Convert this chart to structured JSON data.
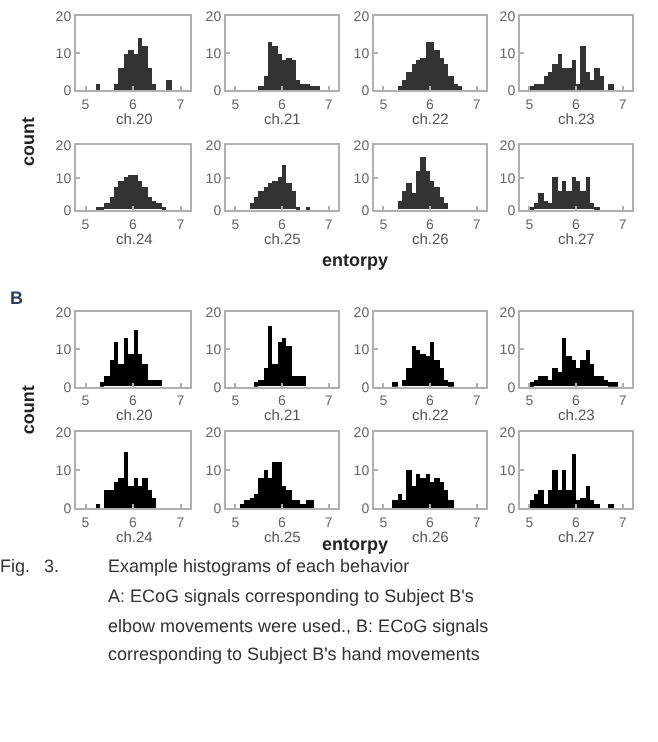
{
  "chart_data": [
    {
      "type": "histogram",
      "xlabel": "ch.20",
      "ylabel": "count",
      "color": "#333333",
      "xlim": [
        4.8,
        7.2
      ],
      "xticks": [
        5,
        6,
        7
      ],
      "ylim": [
        0,
        20
      ],
      "yticks": [
        0,
        10,
        20
      ],
      "grid": false,
      "bins": [
        5.2,
        5.3,
        5.6,
        5.7,
        5.8,
        5.9,
        6.0,
        6.1,
        6.2,
        6.3,
        6.4,
        6.5,
        6.7,
        6.8
      ],
      "values": [
        2,
        0,
        2,
        6,
        10,
        11,
        10,
        14,
        12,
        6,
        2,
        0,
        3
      ]
    },
    {
      "type": "histogram",
      "xlabel": "ch.21",
      "color": "#333333",
      "xlim": [
        4.8,
        7.2
      ],
      "xticks": [
        5,
        6,
        7
      ],
      "ylim": [
        0,
        20
      ],
      "yticks": [
        0,
        10,
        20
      ],
      "grid": false,
      "bins": [
        5.5,
        5.6,
        5.7,
        5.8,
        5.9,
        6.0,
        6.1,
        6.2,
        6.3,
        6.4,
        6.5,
        6.6,
        6.7,
        6.8
      ],
      "values": [
        1,
        4,
        13,
        12,
        10,
        8,
        9,
        8,
        3,
        2,
        2,
        1,
        1
      ]
    },
    {
      "type": "histogram",
      "xlabel": "ch.22",
      "color": "#333333",
      "xlim": [
        4.8,
        7.2
      ],
      "xticks": [
        5,
        6,
        7
      ],
      "ylim": [
        0,
        20
      ],
      "yticks": [
        0,
        10,
        20
      ],
      "grid": false,
      "bins": [
        5.3,
        5.4,
        5.5,
        5.6,
        5.7,
        5.8,
        5.9,
        6.0,
        6.1,
        6.2,
        6.3,
        6.4,
        6.5,
        6.6,
        6.7
      ],
      "values": [
        1,
        3,
        5,
        7,
        8,
        9,
        13,
        13,
        11,
        9,
        7,
        4,
        2,
        1
      ]
    },
    {
      "type": "histogram",
      "xlabel": "ch.23",
      "color": "#333333",
      "xlim": [
        4.8,
        7.2
      ],
      "xticks": [
        5,
        6,
        7
      ],
      "ylim": [
        0,
        20
      ],
      "yticks": [
        0,
        10,
        20
      ],
      "grid": false,
      "bins": [
        5.0,
        5.1,
        5.2,
        5.3,
        5.4,
        5.5,
        5.6,
        5.7,
        5.8,
        5.9,
        6.0,
        6.1,
        6.2,
        6.3,
        6.4,
        6.5,
        6.6,
        6.7,
        6.8
      ],
      "values": [
        1,
        2,
        2,
        4,
        5,
        7,
        10,
        6,
        6,
        8,
        2,
        12,
        5,
        3,
        6,
        4,
        0,
        2
      ]
    },
    {
      "type": "histogram",
      "xlabel": "ch.24",
      "annotations": [
        "entorpy"
      ],
      "color": "#333333",
      "xlim": [
        4.8,
        7.2
      ],
      "xticks": [
        5,
        6,
        7
      ],
      "ylim": [
        0,
        20
      ],
      "yticks": [
        0,
        10,
        20
      ],
      "grid": false,
      "bins": [
        5.2,
        5.3,
        5.4,
        5.5,
        5.6,
        5.7,
        5.8,
        5.9,
        6.0,
        6.1,
        6.2,
        6.3,
        6.4,
        6.5,
        6.6,
        6.7
      ],
      "values": [
        1,
        1,
        2,
        4,
        7,
        9,
        10,
        11,
        11,
        9,
        7,
        4,
        3,
        2,
        1
      ]
    },
    {
      "type": "histogram",
      "xlabel": "ch.25",
      "color": "#333333",
      "xlim": [
        4.8,
        7.2
      ],
      "xticks": [
        5,
        6,
        7
      ],
      "ylim": [
        0,
        20
      ],
      "yticks": [
        0,
        10,
        20
      ],
      "grid": false,
      "bins": [
        5.3,
        5.4,
        5.5,
        5.6,
        5.7,
        5.8,
        5.9,
        6.0,
        6.1,
        6.2,
        6.3,
        6.4,
        6.5,
        6.6
      ],
      "values": [
        2,
        4,
        6,
        7,
        8,
        9,
        10,
        14,
        8,
        6,
        1,
        0,
        1
      ]
    },
    {
      "type": "histogram",
      "xlabel": "ch.26",
      "color": "#333333",
      "xlim": [
        4.8,
        7.2
      ],
      "xticks": [
        5,
        6,
        7
      ],
      "ylim": [
        0,
        20
      ],
      "yticks": [
        0,
        10,
        20
      ],
      "grid": false,
      "bins": [
        5.3,
        5.4,
        5.5,
        5.6,
        5.7,
        5.8,
        5.9,
        6.0,
        6.1,
        6.2,
        6.3,
        6.4
      ],
      "values": [
        3,
        6,
        8,
        5,
        12,
        16,
        12,
        9,
        7,
        4,
        2
      ]
    },
    {
      "type": "histogram",
      "xlabel": "ch.27",
      "color": "#333333",
      "xlim": [
        4.8,
        7.2
      ],
      "xticks": [
        5,
        6,
        7
      ],
      "ylim": [
        0,
        20
      ],
      "yticks": [
        0,
        10,
        20
      ],
      "grid": false,
      "bins": [
        5.0,
        5.1,
        5.2,
        5.3,
        5.4,
        5.5,
        5.6,
        5.7,
        5.8,
        5.9,
        6.0,
        6.1,
        6.2,
        6.3,
        6.4,
        6.5
      ],
      "values": [
        1,
        2,
        5,
        3,
        2,
        10,
        6,
        9,
        6,
        10,
        9,
        6,
        10,
        2,
        1
      ]
    },
    {
      "type": "histogram",
      "xlabel": "ch.20",
      "ylabel": "count",
      "annotations": [
        "B"
      ],
      "color": "#000000",
      "xlim": [
        4.8,
        7.2
      ],
      "xticks": [
        5,
        6,
        7
      ],
      "ylim": [
        0,
        20
      ],
      "yticks": [
        0,
        10,
        20
      ],
      "grid": false,
      "bins": [
        5.3,
        5.4,
        5.5,
        5.6,
        5.7,
        5.8,
        5.9,
        6.0,
        6.1,
        6.2,
        6.3,
        6.4,
        6.5,
        6.6
      ],
      "values": [
        1,
        3,
        7,
        12,
        6,
        13,
        9,
        15,
        9,
        6,
        2,
        2,
        2
      ]
    },
    {
      "type": "histogram",
      "xlabel": "ch.21",
      "color": "#000000",
      "xlim": [
        4.8,
        7.2
      ],
      "xticks": [
        5,
        6,
        7
      ],
      "ylim": [
        0,
        20
      ],
      "yticks": [
        0,
        10,
        20
      ],
      "grid": false,
      "bins": [
        5.4,
        5.5,
        5.6,
        5.7,
        5.8,
        5.9,
        6.0,
        6.1,
        6.2,
        6.3,
        6.4,
        6.5
      ],
      "values": [
        1,
        2,
        5,
        16,
        6,
        12,
        13,
        11,
        3,
        3,
        3
      ]
    },
    {
      "type": "histogram",
      "xlabel": "ch.22",
      "color": "#000000",
      "xlim": [
        4.8,
        7.2
      ],
      "xticks": [
        5,
        6,
        7
      ],
      "ylim": [
        0,
        20
      ],
      "yticks": [
        0,
        10,
        20
      ],
      "grid": false,
      "bins": [
        5.2,
        5.3,
        5.4,
        5.5,
        5.6,
        5.7,
        5.8,
        5.9,
        6.0,
        6.1,
        6.2,
        6.3,
        6.4,
        6.5
      ],
      "values": [
        1,
        0,
        2,
        5,
        11,
        10,
        9,
        8,
        12,
        7,
        5,
        2,
        1
      ]
    },
    {
      "type": "histogram",
      "xlabel": "ch.23",
      "color": "#000000",
      "xlim": [
        4.8,
        7.2
      ],
      "xticks": [
        5,
        6,
        7
      ],
      "ylim": [
        0,
        20
      ],
      "yticks": [
        0,
        10,
        20
      ],
      "grid": false,
      "bins": [
        5.0,
        5.1,
        5.2,
        5.3,
        5.4,
        5.5,
        5.6,
        5.7,
        5.8,
        5.9,
        6.0,
        6.1,
        6.2,
        6.3,
        6.4,
        6.5,
        6.6,
        6.7,
        6.8,
        6.9
      ],
      "values": [
        1,
        2,
        3,
        3,
        2,
        5,
        4,
        13,
        8,
        7,
        5,
        7,
        10,
        6,
        3,
        3,
        2,
        1,
        1
      ]
    },
    {
      "type": "histogram",
      "xlabel": "ch.24",
      "annotations": [
        "entorpy"
      ],
      "color": "#000000",
      "xlim": [
        4.8,
        7.2
      ],
      "xticks": [
        5,
        6,
        7
      ],
      "ylim": [
        0,
        20
      ],
      "yticks": [
        0,
        10,
        20
      ],
      "grid": false,
      "bins": [
        5.2,
        5.3,
        5.4,
        5.5,
        5.6,
        5.7,
        5.8,
        5.9,
        6.0,
        6.1,
        6.2,
        6.3,
        6.4,
        6.5
      ],
      "values": [
        1,
        0,
        5,
        5,
        7,
        8,
        15,
        6,
        8,
        6,
        8,
        5,
        3
      ]
    },
    {
      "type": "histogram",
      "xlabel": "ch.25",
      "color": "#000000",
      "xlim": [
        4.8,
        7.2
      ],
      "xticks": [
        5,
        6,
        7
      ],
      "ylim": [
        0,
        20
      ],
      "yticks": [
        0,
        10,
        20
      ],
      "grid": false,
      "bins": [
        5.1,
        5.2,
        5.3,
        5.4,
        5.5,
        5.6,
        5.7,
        5.8,
        5.9,
        6.0,
        6.1,
        6.2,
        6.3,
        6.4,
        6.5,
        6.6,
        6.7
      ],
      "values": [
        1,
        2,
        3,
        4,
        8,
        10,
        8,
        12,
        12,
        6,
        5,
        2,
        2,
        1,
        2,
        2
      ]
    },
    {
      "type": "histogram",
      "xlabel": "ch.26",
      "color": "#000000",
      "xlim": [
        4.8,
        7.2
      ],
      "xticks": [
        5,
        6,
        7
      ],
      "ylim": [
        0,
        20
      ],
      "yticks": [
        0,
        10,
        20
      ],
      "grid": false,
      "bins": [
        5.2,
        5.3,
        5.4,
        5.5,
        5.6,
        5.7,
        5.8,
        5.9,
        6.0,
        6.1,
        6.2,
        6.3,
        6.4,
        6.5
      ],
      "values": [
        2,
        4,
        2,
        10,
        6,
        9,
        8,
        9,
        7,
        8,
        7,
        5,
        2
      ]
    },
    {
      "type": "histogram",
      "xlabel": "ch.27",
      "color": "#000000",
      "xlim": [
        4.8,
        7.2
      ],
      "xticks": [
        5,
        6,
        7
      ],
      "ylim": [
        0,
        20
      ],
      "yticks": [
        0,
        10,
        20
      ],
      "grid": false,
      "bins": [
        5.0,
        5.1,
        5.2,
        5.3,
        5.4,
        5.5,
        5.6,
        5.7,
        5.8,
        5.9,
        6.0,
        6.1,
        6.2,
        6.3,
        6.4,
        6.5,
        6.7,
        6.8
      ],
      "values": [
        2,
        4,
        5,
        1,
        5,
        10,
        5,
        10,
        5,
        14,
        2,
        3,
        6,
        2,
        1,
        0,
        1
      ]
    },
    {
      "type": "other",
      "annotations": [
        "Fig.",
        "3.",
        "Example histograms of each behavior",
        "A: ECoG signals corresponding to Subject B's",
        "elbow movements were used., B: ECoG signals",
        "corresponding to Subject B's hand movements"
      ]
    }
  ]
}
